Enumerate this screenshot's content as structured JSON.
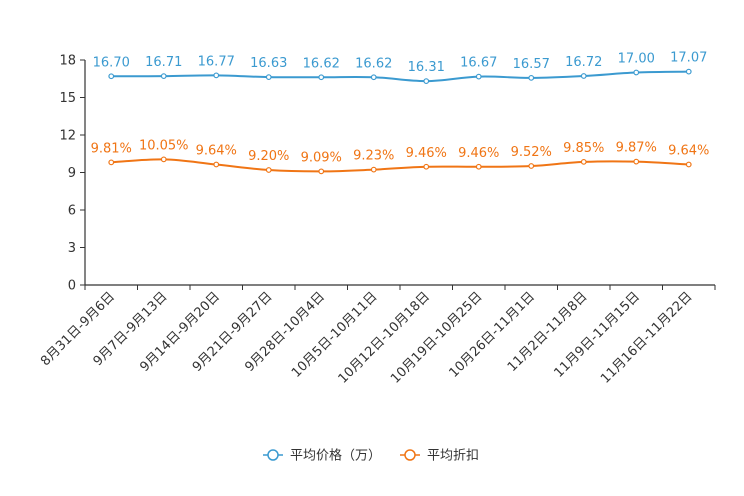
{
  "chart_data": {
    "type": "line",
    "title": "",
    "xlabel": "",
    "ylabel": "",
    "ylim": [
      0,
      18
    ],
    "yticks": [
      0,
      3,
      6,
      9,
      12,
      15,
      18
    ],
    "categories": [
      "8月31日-9月6日",
      "9月7日-9月13日",
      "9月14日-9月20日",
      "9月21日-9月27日",
      "9月28日-10月4日",
      "10月5日-10月11日",
      "10月12日-10月18日",
      "10月19日-10月25日",
      "10月26日-11月1日",
      "11月2日-11月8日",
      "11月9日-11月15日",
      "11月16日-11月22日"
    ],
    "series": [
      {
        "name": "平均价格（万）",
        "color": "#3b9ad0",
        "values": [
          16.7,
          16.71,
          16.77,
          16.63,
          16.62,
          16.62,
          16.31,
          16.67,
          16.57,
          16.72,
          17.0,
          17.07
        ],
        "labels": [
          "16.70",
          "16.71",
          "16.77",
          "16.63",
          "16.62",
          "16.62",
          "16.31",
          "16.67",
          "16.57",
          "16.72",
          "17.00",
          "17.07"
        ]
      },
      {
        "name": "平均折扣",
        "color": "#f07515",
        "values": [
          9.81,
          10.05,
          9.64,
          9.2,
          9.09,
          9.23,
          9.46,
          9.46,
          9.52,
          9.85,
          9.87,
          9.64
        ],
        "labels": [
          "9.81%",
          "10.05%",
          "9.64%",
          "9.20%",
          "9.09%",
          "9.23%",
          "9.46%",
          "9.46%",
          "9.52%",
          "9.85%",
          "9.87%",
          "9.64%"
        ]
      }
    ],
    "legend_position": "bottom-center"
  }
}
